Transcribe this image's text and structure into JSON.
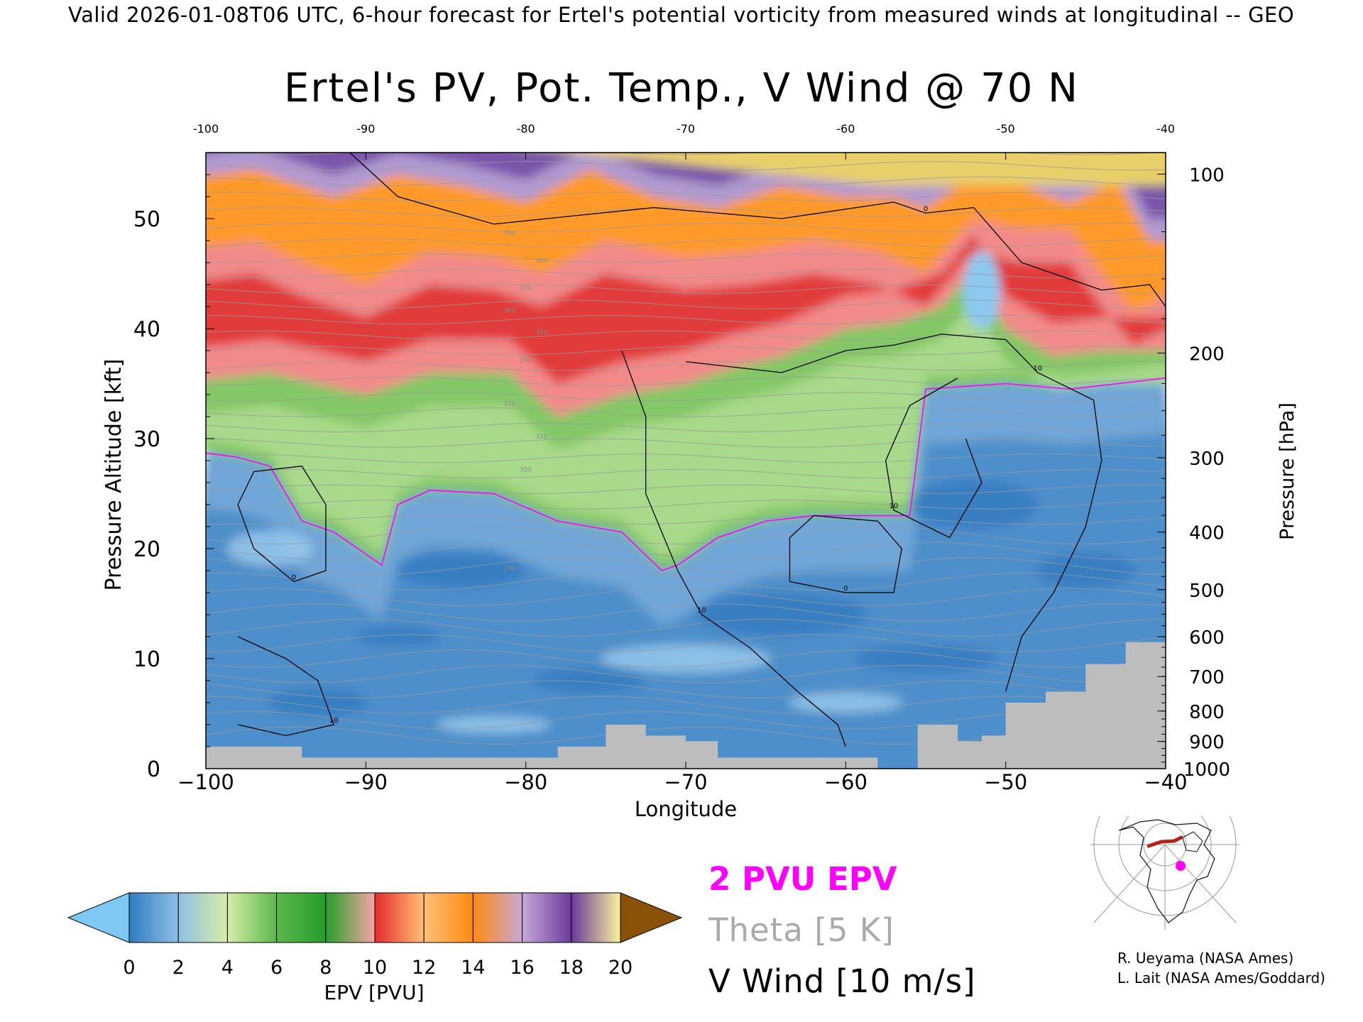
{
  "header": "Valid 2026-01-08T06 UTC, 6-hour forecast for Ertel's potential vorticity from measured winds at longitudinal -- GEO",
  "title": "Ertel's PV, Pot. Temp., V Wind @ 70 N",
  "legend": {
    "epv_line": "2 PVU EPV",
    "theta": "Theta [5 K]",
    "wind": "V Wind [10 m/s]"
  },
  "credits": [
    "R. Ueyama (NASA Ames)",
    "L. Lait (NASA Ames/Goddard)"
  ],
  "colors": {
    "epv_2pvu": "#ff00ff",
    "theta": "#aaaaaa",
    "wind": "#000000",
    "terrain": "#bdbdbd"
  },
  "chart_data": {
    "type": "heatmap",
    "title": "Ertel's PV, Pot. Temp., V Wind @ 70 N",
    "xlabel": "Longitude",
    "ylabel": "Pressure Altitude [kft]",
    "y2label": "Pressure [hPa]",
    "xlim": [
      -100,
      -40
    ],
    "ylim": [
      0,
      56
    ],
    "x_ticks": [
      "-100",
      "-90",
      "-80",
      "-70",
      "-60",
      "-50",
      "-40"
    ],
    "x_tick_values": [
      -100,
      -90,
      -80,
      -70,
      -60,
      -50,
      -40
    ],
    "y_ticks": [
      "0",
      "10",
      "20",
      "30",
      "40",
      "50"
    ],
    "y_tick_values": [
      0,
      10,
      20,
      30,
      40,
      50
    ],
    "pressure_ticks": [
      "100",
      "200",
      "300",
      "400",
      "500",
      "600",
      "700",
      "800",
      "900",
      "1000"
    ],
    "pressure_tick_values": [
      100,
      200,
      300,
      400,
      500,
      600,
      700,
      800,
      900,
      1000
    ],
    "colorbar": {
      "label": "EPV [PVU]",
      "ticks": [
        "0",
        "2",
        "4",
        "6",
        "8",
        "10",
        "12",
        "14",
        "16",
        "18",
        "20"
      ],
      "colors": [
        "#7ec8f4",
        "#2e7cc0",
        "#8fc0e6",
        "#d6eda6",
        "#5bb84b",
        "#259d29",
        "#f7a6a6",
        "#e42b2b",
        "#ffc078",
        "#ff8a10",
        "#c8a8d8",
        "#6a3a9a",
        "#fbf29c",
        "#8a5208"
      ]
    },
    "epv_2pvu_line": [
      {
        "lon": -100,
        "alt": 28.7
      },
      {
        "lon": -98,
        "alt": 28.3
      },
      {
        "lon": -96,
        "alt": 27.5
      },
      {
        "lon": -94,
        "alt": 22.5
      },
      {
        "lon": -92,
        "alt": 21.5
      },
      {
        "lon": -89,
        "alt": 18.5
      },
      {
        "lon": -88,
        "alt": 24.0
      },
      {
        "lon": -86,
        "alt": 25.3
      },
      {
        "lon": -82,
        "alt": 25.0
      },
      {
        "lon": -78,
        "alt": 22.5
      },
      {
        "lon": -74,
        "alt": 21.5
      },
      {
        "lon": -71.5,
        "alt": 18.0
      },
      {
        "lon": -70.5,
        "alt": 18.5
      },
      {
        "lon": -68,
        "alt": 21.0
      },
      {
        "lon": -65,
        "alt": 22.5
      },
      {
        "lon": -62,
        "alt": 23.0
      },
      {
        "lon": -58,
        "alt": 23.0
      },
      {
        "lon": -56,
        "alt": 23.0
      },
      {
        "lon": -55,
        "alt": 34.5
      },
      {
        "lon": -50,
        "alt": 35.0
      },
      {
        "lon": -46,
        "alt": 34.5
      },
      {
        "lon": -40,
        "alt": 35.5
      }
    ],
    "vwind_contours": [
      {
        "label": "0",
        "points": [
          [
            -91,
            56
          ],
          [
            -88,
            52
          ],
          [
            -82,
            49.5
          ],
          [
            -72,
            51
          ],
          [
            -64,
            50
          ],
          [
            -57,
            51.5
          ],
          [
            -55,
            50.5
          ],
          [
            -52,
            51
          ],
          [
            -49,
            46
          ],
          [
            -44,
            43.5
          ],
          [
            -41,
            44
          ],
          [
            -40,
            42
          ]
        ]
      },
      {
        "label": "0",
        "points": [
          [
            -97,
            27
          ],
          [
            -94,
            27.5
          ],
          [
            -92.5,
            24
          ],
          [
            -92.5,
            18
          ],
          [
            -94.5,
            17
          ],
          [
            -97,
            20
          ],
          [
            -98,
            24
          ],
          [
            -97,
            27
          ]
        ]
      },
      {
        "label": "10",
        "points": [
          [
            -70,
            37
          ],
          [
            -64,
            36
          ],
          [
            -60,
            38
          ],
          [
            -57,
            38.5
          ],
          [
            -54,
            39.5
          ],
          [
            -50,
            39
          ],
          [
            -48,
            36
          ],
          [
            -44.5,
            33.5
          ],
          [
            -44,
            28
          ],
          [
            -45,
            22
          ],
          [
            -47,
            16
          ],
          [
            -49,
            12
          ],
          [
            -50,
            7
          ]
        ]
      },
      {
        "label": "0",
        "points": [
          [
            -62,
            23
          ],
          [
            -58,
            22.5
          ],
          [
            -56.5,
            20
          ],
          [
            -57,
            16
          ],
          [
            -60,
            16
          ],
          [
            -63.5,
            17
          ],
          [
            -63.5,
            21
          ],
          [
            -62,
            23
          ]
        ]
      },
      {
        "label": "10",
        "points": [
          [
            -53,
            35.5
          ],
          [
            -56,
            33
          ],
          [
            -57.5,
            28
          ],
          [
            -57,
            23.5
          ],
          [
            -53.5,
            21
          ],
          [
            -51.5,
            26
          ],
          [
            -52.5,
            30
          ]
        ]
      },
      {
        "label": "10",
        "points": [
          [
            -98,
            12
          ],
          [
            -95,
            10
          ],
          [
            -93,
            8
          ],
          [
            -92,
            4
          ],
          [
            -95,
            3
          ],
          [
            -98,
            4
          ]
        ]
      },
      {
        "label": "10",
        "points": [
          [
            -74,
            38
          ],
          [
            -72.5,
            32
          ],
          [
            -72.5,
            25
          ],
          [
            -70.5,
            18
          ],
          [
            -69,
            14
          ],
          [
            -66,
            11
          ],
          [
            -63,
            7
          ],
          [
            -60.5,
            4
          ],
          [
            -60,
            2
          ]
        ]
      }
    ],
    "theta_labels": [
      "290",
      "300",
      "310",
      "320",
      "340",
      "350",
      "360",
      "370",
      "380",
      "390"
    ]
  }
}
